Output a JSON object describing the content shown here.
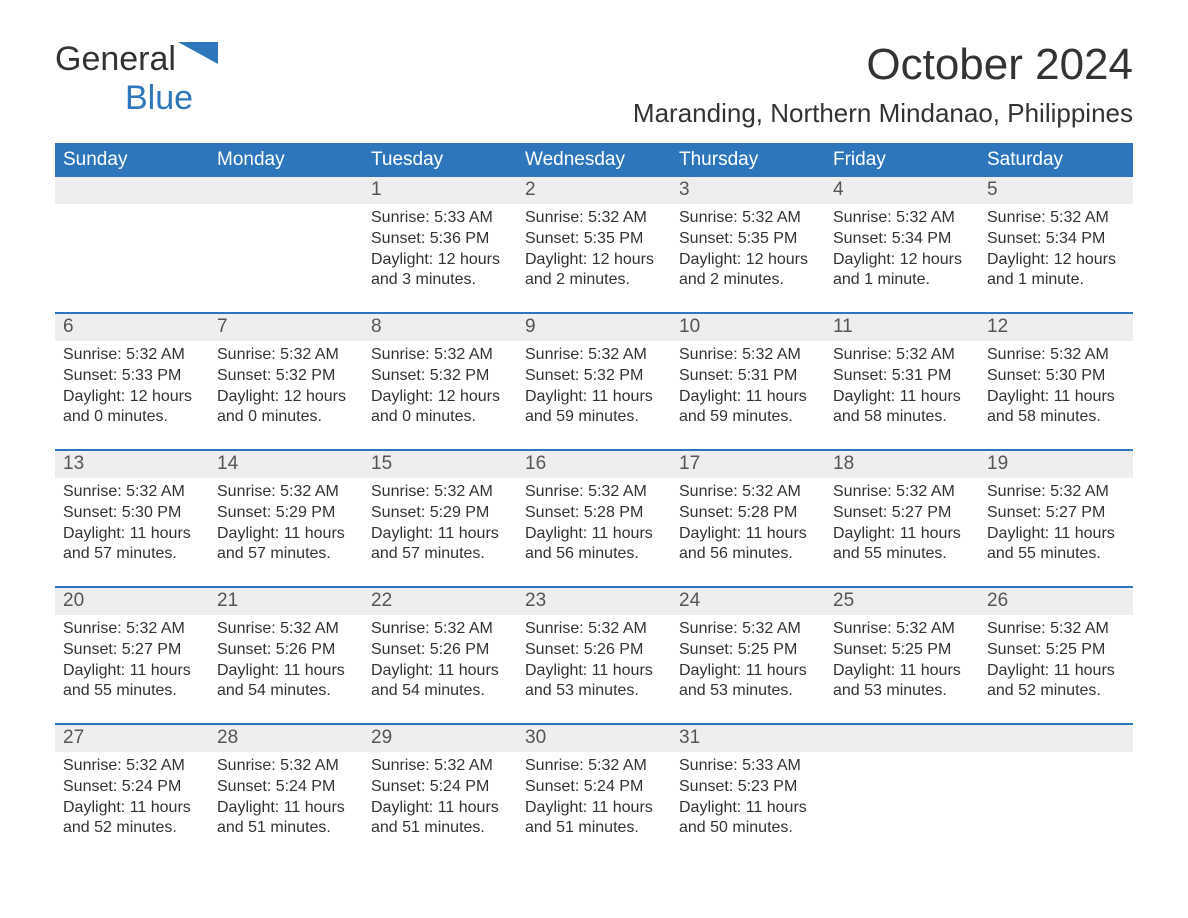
{
  "logo": {
    "text1": "General",
    "text2": "Blue",
    "accent_color": "#2d76bb"
  },
  "header": {
    "month_title": "October 2024",
    "location": "Maranding, Northern Mindanao, Philippines"
  },
  "colors": {
    "header_bg": "#2d76bb",
    "header_text": "#ffffff",
    "daynum_bg": "#eeeeee",
    "border": "#2d76bb",
    "body_text": "#333333"
  },
  "day_names": [
    "Sunday",
    "Monday",
    "Tuesday",
    "Wednesday",
    "Thursday",
    "Friday",
    "Saturday"
  ],
  "weeks": [
    [
      {
        "num": "",
        "sunrise": "",
        "sunset": "",
        "daylight": ""
      },
      {
        "num": "",
        "sunrise": "",
        "sunset": "",
        "daylight": ""
      },
      {
        "num": "1",
        "sunrise": "Sunrise: 5:33 AM",
        "sunset": "Sunset: 5:36 PM",
        "daylight": "Daylight: 12 hours and 3 minutes."
      },
      {
        "num": "2",
        "sunrise": "Sunrise: 5:32 AM",
        "sunset": "Sunset: 5:35 PM",
        "daylight": "Daylight: 12 hours and 2 minutes."
      },
      {
        "num": "3",
        "sunrise": "Sunrise: 5:32 AM",
        "sunset": "Sunset: 5:35 PM",
        "daylight": "Daylight: 12 hours and 2 minutes."
      },
      {
        "num": "4",
        "sunrise": "Sunrise: 5:32 AM",
        "sunset": "Sunset: 5:34 PM",
        "daylight": "Daylight: 12 hours and 1 minute."
      },
      {
        "num": "5",
        "sunrise": "Sunrise: 5:32 AM",
        "sunset": "Sunset: 5:34 PM",
        "daylight": "Daylight: 12 hours and 1 minute."
      }
    ],
    [
      {
        "num": "6",
        "sunrise": "Sunrise: 5:32 AM",
        "sunset": "Sunset: 5:33 PM",
        "daylight": "Daylight: 12 hours and 0 minutes."
      },
      {
        "num": "7",
        "sunrise": "Sunrise: 5:32 AM",
        "sunset": "Sunset: 5:32 PM",
        "daylight": "Daylight: 12 hours and 0 minutes."
      },
      {
        "num": "8",
        "sunrise": "Sunrise: 5:32 AM",
        "sunset": "Sunset: 5:32 PM",
        "daylight": "Daylight: 12 hours and 0 minutes."
      },
      {
        "num": "9",
        "sunrise": "Sunrise: 5:32 AM",
        "sunset": "Sunset: 5:32 PM",
        "daylight": "Daylight: 11 hours and 59 minutes."
      },
      {
        "num": "10",
        "sunrise": "Sunrise: 5:32 AM",
        "sunset": "Sunset: 5:31 PM",
        "daylight": "Daylight: 11 hours and 59 minutes."
      },
      {
        "num": "11",
        "sunrise": "Sunrise: 5:32 AM",
        "sunset": "Sunset: 5:31 PM",
        "daylight": "Daylight: 11 hours and 58 minutes."
      },
      {
        "num": "12",
        "sunrise": "Sunrise: 5:32 AM",
        "sunset": "Sunset: 5:30 PM",
        "daylight": "Daylight: 11 hours and 58 minutes."
      }
    ],
    [
      {
        "num": "13",
        "sunrise": "Sunrise: 5:32 AM",
        "sunset": "Sunset: 5:30 PM",
        "daylight": "Daylight: 11 hours and 57 minutes."
      },
      {
        "num": "14",
        "sunrise": "Sunrise: 5:32 AM",
        "sunset": "Sunset: 5:29 PM",
        "daylight": "Daylight: 11 hours and 57 minutes."
      },
      {
        "num": "15",
        "sunrise": "Sunrise: 5:32 AM",
        "sunset": "Sunset: 5:29 PM",
        "daylight": "Daylight: 11 hours and 57 minutes."
      },
      {
        "num": "16",
        "sunrise": "Sunrise: 5:32 AM",
        "sunset": "Sunset: 5:28 PM",
        "daylight": "Daylight: 11 hours and 56 minutes."
      },
      {
        "num": "17",
        "sunrise": "Sunrise: 5:32 AM",
        "sunset": "Sunset: 5:28 PM",
        "daylight": "Daylight: 11 hours and 56 minutes."
      },
      {
        "num": "18",
        "sunrise": "Sunrise: 5:32 AM",
        "sunset": "Sunset: 5:27 PM",
        "daylight": "Daylight: 11 hours and 55 minutes."
      },
      {
        "num": "19",
        "sunrise": "Sunrise: 5:32 AM",
        "sunset": "Sunset: 5:27 PM",
        "daylight": "Daylight: 11 hours and 55 minutes."
      }
    ],
    [
      {
        "num": "20",
        "sunrise": "Sunrise: 5:32 AM",
        "sunset": "Sunset: 5:27 PM",
        "daylight": "Daylight: 11 hours and 55 minutes."
      },
      {
        "num": "21",
        "sunrise": "Sunrise: 5:32 AM",
        "sunset": "Sunset: 5:26 PM",
        "daylight": "Daylight: 11 hours and 54 minutes."
      },
      {
        "num": "22",
        "sunrise": "Sunrise: 5:32 AM",
        "sunset": "Sunset: 5:26 PM",
        "daylight": "Daylight: 11 hours and 54 minutes."
      },
      {
        "num": "23",
        "sunrise": "Sunrise: 5:32 AM",
        "sunset": "Sunset: 5:26 PM",
        "daylight": "Daylight: 11 hours and 53 minutes."
      },
      {
        "num": "24",
        "sunrise": "Sunrise: 5:32 AM",
        "sunset": "Sunset: 5:25 PM",
        "daylight": "Daylight: 11 hours and 53 minutes."
      },
      {
        "num": "25",
        "sunrise": "Sunrise: 5:32 AM",
        "sunset": "Sunset: 5:25 PM",
        "daylight": "Daylight: 11 hours and 53 minutes."
      },
      {
        "num": "26",
        "sunrise": "Sunrise: 5:32 AM",
        "sunset": "Sunset: 5:25 PM",
        "daylight": "Daylight: 11 hours and 52 minutes."
      }
    ],
    [
      {
        "num": "27",
        "sunrise": "Sunrise: 5:32 AM",
        "sunset": "Sunset: 5:24 PM",
        "daylight": "Daylight: 11 hours and 52 minutes."
      },
      {
        "num": "28",
        "sunrise": "Sunrise: 5:32 AM",
        "sunset": "Sunset: 5:24 PM",
        "daylight": "Daylight: 11 hours and 51 minutes."
      },
      {
        "num": "29",
        "sunrise": "Sunrise: 5:32 AM",
        "sunset": "Sunset: 5:24 PM",
        "daylight": "Daylight: 11 hours and 51 minutes."
      },
      {
        "num": "30",
        "sunrise": "Sunrise: 5:32 AM",
        "sunset": "Sunset: 5:24 PM",
        "daylight": "Daylight: 11 hours and 51 minutes."
      },
      {
        "num": "31",
        "sunrise": "Sunrise: 5:33 AM",
        "sunset": "Sunset: 5:23 PM",
        "daylight": "Daylight: 11 hours and 50 minutes."
      },
      {
        "num": "",
        "sunrise": "",
        "sunset": "",
        "daylight": ""
      },
      {
        "num": "",
        "sunrise": "",
        "sunset": "",
        "daylight": ""
      }
    ]
  ]
}
